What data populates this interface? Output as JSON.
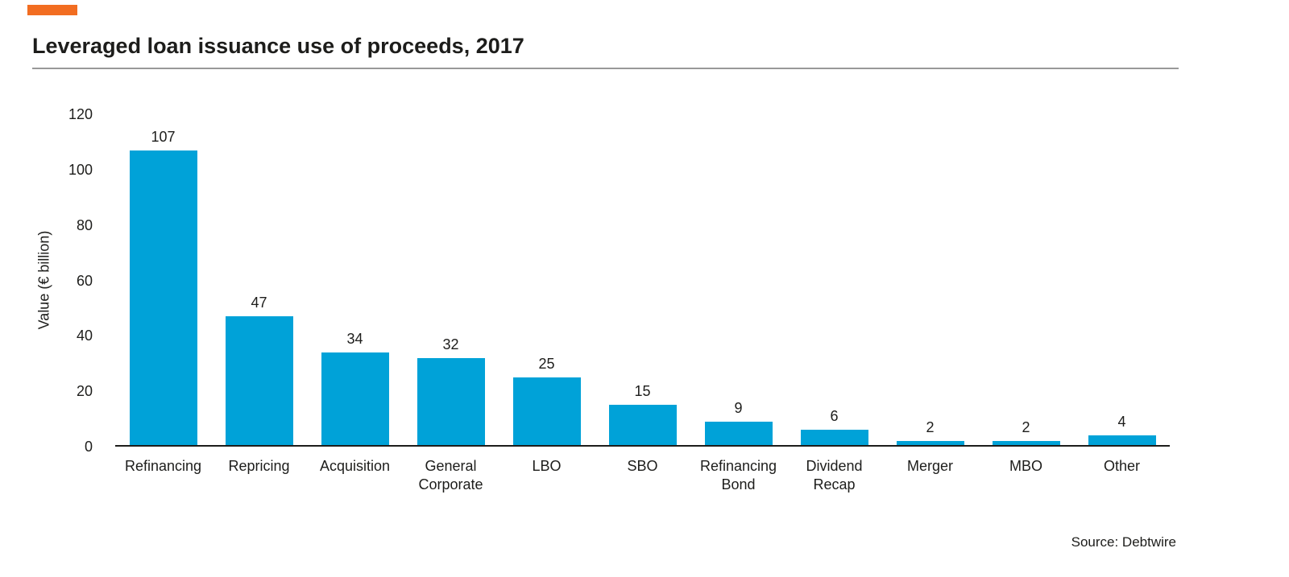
{
  "title": "Leveraged loan issuance use of proceeds, 2017",
  "source": "Source: Debtwire",
  "accent_color": "#F26D21",
  "rule_color": "#999999",
  "text_color": "#1D1D1B",
  "chart_data": {
    "type": "bar",
    "title": "Leveraged loan issuance use of proceeds, 2017",
    "categories": [
      "Refinancing",
      "Repricing",
      "Acquisition",
      "General\nCorporate",
      "LBO",
      "SBO",
      "Refinancing\nBond",
      "Dividend\nRecap",
      "Merger",
      "MBO",
      "Other"
    ],
    "values": [
      107,
      47,
      34,
      32,
      25,
      15,
      9,
      6,
      2,
      2,
      4
    ],
    "xlabel": "",
    "ylabel": "Value (€ billion)",
    "yticks": [
      0,
      20,
      40,
      60,
      80,
      100,
      120
    ],
    "ylim": [
      0,
      120
    ],
    "grid": false,
    "legend": false,
    "bar_color": "#00A2D8",
    "data_labels": true
  }
}
